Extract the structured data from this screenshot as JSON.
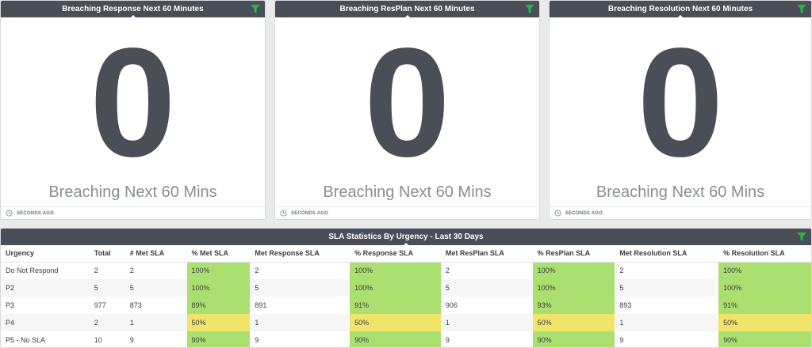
{
  "kpi_widgets": [
    {
      "title": "Breaching Response Next 60 Minutes",
      "value": "0",
      "caption": "Breaching Next 60 Mins",
      "updated": "SECONDS AGO"
    },
    {
      "title": "Breaching ResPlan Next 60 Minutes",
      "value": "0",
      "caption": "Breaching Next 60 Mins",
      "updated": "SECONDS AGO"
    },
    {
      "title": "Breaching Resolution Next 60 Minutes",
      "value": "0",
      "caption": "Breaching Next 60 Mins",
      "updated": "SECONDS AGO"
    }
  ],
  "sla_table": {
    "title": "SLA Statistics By Urgency - Last 30 Days",
    "columns": [
      "Urgency",
      "Total",
      "# Met SLA",
      "% Met SLA",
      "Met Response SLA",
      "% Response SLA",
      "Met ResPlan SLA",
      "% ResPlan SLA",
      "Met Resolution SLA",
      "% Resolution SLA"
    ],
    "rows": [
      [
        "Do Not Respond",
        "2",
        "2",
        "100%",
        "2",
        "100%",
        "2",
        "100%",
        "2",
        "100%"
      ],
      [
        "P2",
        "5",
        "5",
        "100%",
        "5",
        "100%",
        "5",
        "100%",
        "5",
        "100%"
      ],
      [
        "P3",
        "977",
        "873",
        "89%",
        "891",
        "91%",
        "906",
        "93%",
        "893",
        "91%"
      ],
      [
        "P4",
        "2",
        "1",
        "50%",
        "1",
        "50%",
        "1",
        "50%",
        "1",
        "50%"
      ],
      [
        "P5 - No SLA",
        "10",
        "9",
        "90%",
        "9",
        "90%",
        "9",
        "90%",
        "9",
        "90%"
      ]
    ]
  },
  "icons": {
    "filter": "filter-icon",
    "clock": "clock-icon"
  },
  "colors": {
    "header_bg": "#4a4e56",
    "filter_green": "#2bb24c",
    "sla_good": "#abe070",
    "sla_warning": "#f0e46a"
  }
}
